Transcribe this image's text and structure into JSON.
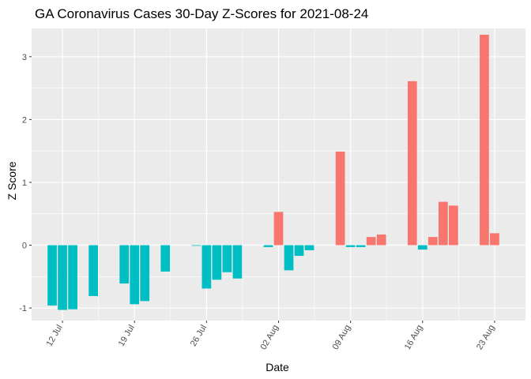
{
  "chart_data": {
    "type": "bar",
    "title": "GA Coronavirus Cases 30-Day Z-Scores for 2021-08-24",
    "xlabel": "Date",
    "ylabel": "Z Score",
    "xlim": [
      "2021-07-09",
      "2021-08-26"
    ],
    "ylim": [
      -1.2,
      3.45
    ],
    "x_ticks": [
      {
        "date": "2021-07-12",
        "label": "12 Jul"
      },
      {
        "date": "2021-07-19",
        "label": "19 Jul"
      },
      {
        "date": "2021-07-26",
        "label": "26 Jul"
      },
      {
        "date": "2021-08-02",
        "label": "02 Aug"
      },
      {
        "date": "2021-08-09",
        "label": "09 Aug"
      },
      {
        "date": "2021-08-16",
        "label": "16 Aug"
      },
      {
        "date": "2021-08-23",
        "label": "23 Aug"
      }
    ],
    "y_ticks": [
      -1,
      0,
      1,
      2,
      3
    ],
    "grid": true,
    "legend": "none",
    "colors": {
      "positive": "#F8766D",
      "negative": "#00BFC4"
    },
    "bars": [
      {
        "date": "2021-07-11",
        "value": -0.96
      },
      {
        "date": "2021-07-12",
        "value": -1.03
      },
      {
        "date": "2021-07-13",
        "value": -1.02
      },
      {
        "date": "2021-07-15",
        "value": -0.81
      },
      {
        "date": "2021-07-18",
        "value": -0.61
      },
      {
        "date": "2021-07-19",
        "value": -0.94
      },
      {
        "date": "2021-07-20",
        "value": -0.89
      },
      {
        "date": "2021-07-22",
        "value": -0.42
      },
      {
        "date": "2021-07-25",
        "value": -0.01
      },
      {
        "date": "2021-07-26",
        "value": -0.69
      },
      {
        "date": "2021-07-27",
        "value": -0.55
      },
      {
        "date": "2021-07-28",
        "value": -0.43
      },
      {
        "date": "2021-07-29",
        "value": -0.53
      },
      {
        "date": "2021-08-01",
        "value": -0.03
      },
      {
        "date": "2021-08-02",
        "value": 0.53
      },
      {
        "date": "2021-08-03",
        "value": -0.4
      },
      {
        "date": "2021-08-04",
        "value": -0.17
      },
      {
        "date": "2021-08-05",
        "value": -0.08
      },
      {
        "date": "2021-08-08",
        "value": 1.49
      },
      {
        "date": "2021-08-09",
        "value": -0.03
      },
      {
        "date": "2021-08-10",
        "value": -0.03
      },
      {
        "date": "2021-08-11",
        "value": 0.13
      },
      {
        "date": "2021-08-12",
        "value": 0.17
      },
      {
        "date": "2021-08-15",
        "value": 2.61
      },
      {
        "date": "2021-08-16",
        "value": -0.07
      },
      {
        "date": "2021-08-17",
        "value": 0.13
      },
      {
        "date": "2021-08-18",
        "value": 0.69
      },
      {
        "date": "2021-08-19",
        "value": 0.63
      },
      {
        "date": "2021-08-22",
        "value": 3.35
      },
      {
        "date": "2021-08-23",
        "value": 0.19
      }
    ]
  }
}
